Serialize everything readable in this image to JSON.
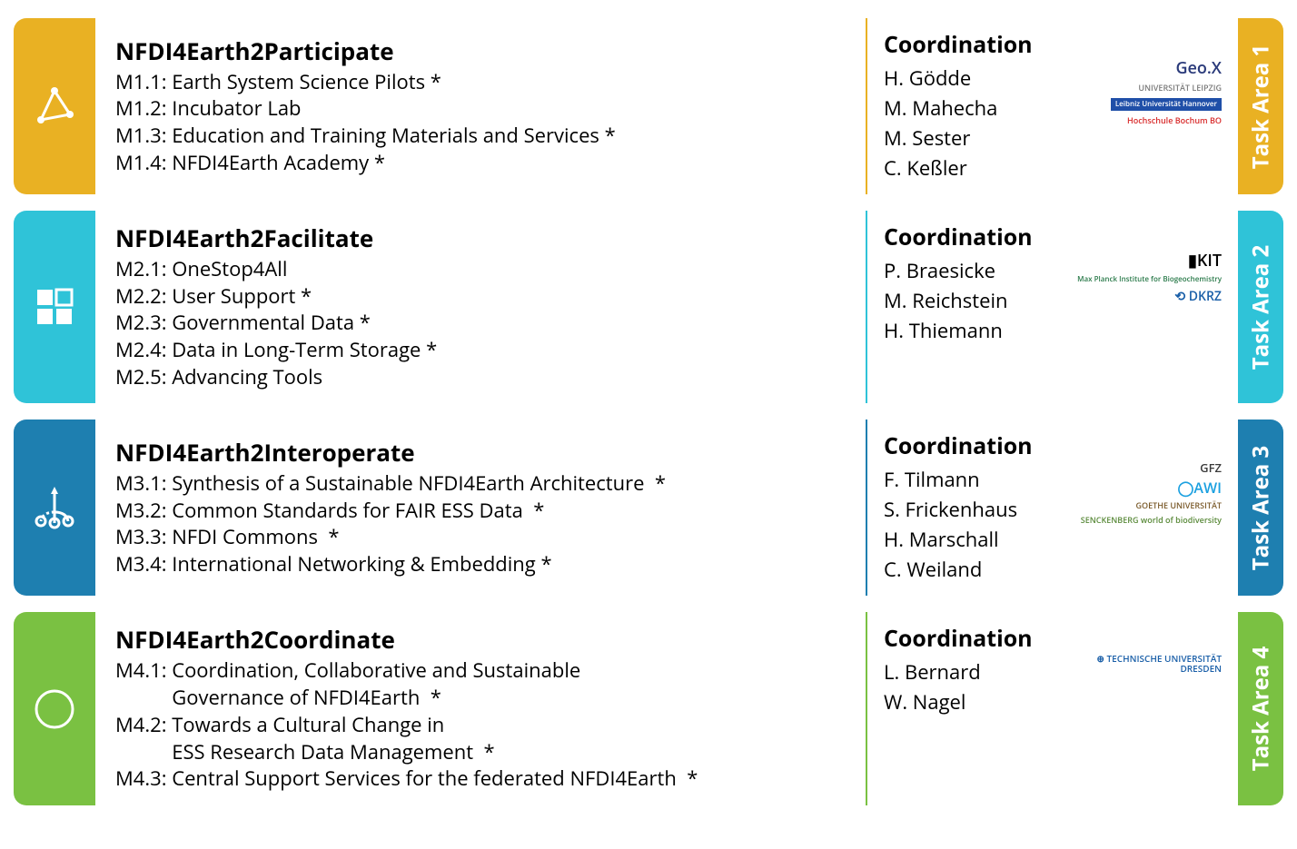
{
  "coordination_heading": "Coordination",
  "task_areas": [
    {
      "id": "ta1",
      "color": "#e9b123",
      "tab_label": "Task Area 1",
      "title": "NFDI4Earth2Participate",
      "icon": "triangle",
      "measures": [
        {
          "code": "M1.1",
          "label": "Earth System Science Pilots *"
        },
        {
          "code": "M1.2",
          "label": "Incubator Lab"
        },
        {
          "code": "M1.3",
          "label": "Education and Training Materials and Services *"
        },
        {
          "code": "M1.4",
          "label": "NFDI4Earth Academy *"
        }
      ],
      "coordinators": [
        "H. Gödde",
        "M. Mahecha",
        "M. Sester",
        "C. Keßler"
      ],
      "logos": [
        {
          "text": "Geo.X",
          "color": "#2a3a7a",
          "size": 18
        },
        {
          "text": "UNIVERSITÄT LEIPZIG",
          "color": "#7a7a7a",
          "size": 9
        },
        {
          "text": "Leibniz Universität Hannover",
          "color": "#ffffff",
          "bg": "#1f4fa8",
          "size": 8
        },
        {
          "text": "Hochschule Bochum  BO",
          "color": "#d82a2a",
          "size": 9
        }
      ]
    },
    {
      "id": "ta2",
      "color": "#2fc3d8",
      "tab_label": "Task Area 2",
      "title": "NFDI4Earth2Facilitate",
      "icon": "grid",
      "measures": [
        {
          "code": "M2.1",
          "label": "OneStop4All"
        },
        {
          "code": "M2.2",
          "label": "User Support *"
        },
        {
          "code": "M2.3",
          "label": "Governmental Data *"
        },
        {
          "code": "M2.4",
          "label": "Data in Long-Term Storage *"
        },
        {
          "code": "M2.5",
          "label": "Advancing Tools"
        }
      ],
      "coordinators": [
        "P.  Braesicke",
        "M. Reichstein",
        "H. Thiemann"
      ],
      "logos": [
        {
          "text": "▮KIT",
          "color": "#000000",
          "size": 18
        },
        {
          "text": "Max Planck Institute for Biogeochemistry",
          "color": "#2a7a4a",
          "size": 8
        },
        {
          "text": "⟲ DKRZ",
          "color": "#1a5fa8",
          "size": 14
        }
      ]
    },
    {
      "id": "ta3",
      "color": "#1e7fb0",
      "tab_label": "Task Area 3",
      "title": "NFDI4Earth2Interoperate",
      "icon": "branch",
      "measures": [
        {
          "code": "M3.1",
          "label": "Synthesis of a Sustainable NFDI4Earth Architecture  *"
        },
        {
          "code": "M3.2",
          "label": "Common Standards for FAIR ESS Data  *"
        },
        {
          "code": "M3.3",
          "label": "NFDI Commons  *"
        },
        {
          "code": "M3.4",
          "label": "International Networking & Embedding *"
        }
      ],
      "coordinators": [
        "F. Tilmann",
        "S. Frickenhaus",
        "H. Marschall",
        "C. Weiland"
      ],
      "logos": [
        {
          "text": "GFZ",
          "color": "#3a3a3a",
          "size": 13
        },
        {
          "text": "◯AWI",
          "color": "#1aa0e0",
          "size": 16
        },
        {
          "text": "GOETHE UNIVERSITÄT",
          "color": "#7a5a2a",
          "size": 9
        },
        {
          "text": "SENCKENBERG world of biodiversity",
          "color": "#5a8a3a",
          "size": 9
        }
      ]
    },
    {
      "id": "ta4",
      "color": "#7ac142",
      "tab_label": "Task Area 4",
      "title": "NFDI4Earth2Coordinate",
      "icon": "compass",
      "measures": [
        {
          "code": "M4.1",
          "label": "Coordination, Collaborative and Sustainable\nGovernance of NFDI4Earth  *"
        },
        {
          "code": "M4.2",
          "label": "Towards a Cultural Change in\nESS Research Data Management  *"
        },
        {
          "code": "M4.3",
          "label": "Central Support Services for the federated NFDI4Earth  *"
        }
      ],
      "coordinators": [
        "L. Bernard",
        "W. Nagel"
      ],
      "logos": [
        {
          "text": "⊕ TECHNISCHE UNIVERSITÄT DRESDEN",
          "color": "#1a5fa8",
          "size": 10
        }
      ]
    }
  ]
}
